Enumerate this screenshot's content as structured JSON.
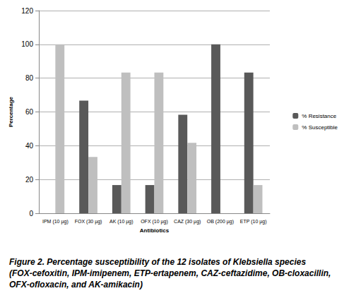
{
  "chart_data": {
    "type": "bar",
    "title": "Figure 2. Percentage susceptibility of the 12 isolates of Klebsiella species (FOX-cefoxitin, IPM-imipenem, ETP-ertapenem, CAZ-ceftazidime, OB-cloxacillin, OFX-ofloxacin, and AK-amikacin)",
    "x_label": "Antibiotics",
    "y_label": "Percentage",
    "categories": [
      "IPM (10 µg)",
      "FOX (30 µg)",
      "AK (10 µg)",
      "OFX (10 µg)",
      "CAZ (30 µg)",
      "OB (200 µg)",
      "ETP (10 µg)"
    ],
    "series": [
      {
        "name": "% Resistance",
        "color": "#595959",
        "values": [
          0,
          66.7,
          16.7,
          16.7,
          58.3,
          100,
          83.3
        ]
      },
      {
        "name": "% Susceptible",
        "color": "#bfbfbf",
        "values": [
          100,
          33.3,
          83.3,
          83.3,
          41.7,
          0,
          16.7
        ]
      }
    ],
    "ylim": [
      0,
      120
    ],
    "yticks": [
      0,
      20,
      40,
      60,
      80,
      100,
      120
    ],
    "grid": true,
    "legend": "right"
  }
}
